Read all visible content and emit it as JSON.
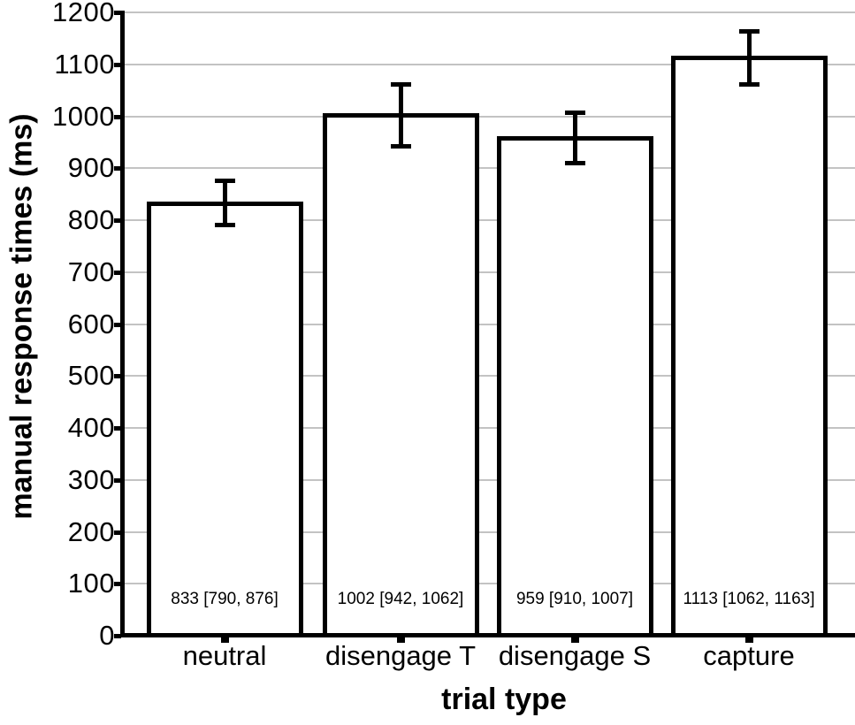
{
  "chart_data": {
    "type": "bar",
    "title": "",
    "xlabel": "trial type",
    "ylabel": "manual response times (ms)",
    "categories": [
      "neutral",
      "disengage T",
      "disengage S",
      "capture"
    ],
    "values": [
      833,
      1002,
      959,
      1113
    ],
    "error_bars": {
      "low": [
        790,
        942,
        910,
        1062
      ],
      "high": [
        876,
        1062,
        1007,
        1163
      ]
    },
    "bar_labels": [
      "833 [790, 876]",
      "1002 [942, 1062]",
      "959 [910, 1007]",
      "1113 [1062, 1163]"
    ],
    "ylim": [
      0,
      1200
    ],
    "yticks": [
      0,
      100,
      200,
      300,
      400,
      500,
      600,
      700,
      800,
      900,
      1000,
      1100,
      1200
    ],
    "grid": "horizontal",
    "legend_position": "none",
    "colors": {
      "bar_fill": "#ffffff",
      "bar_border": "#000000",
      "error_bar": "#000000",
      "gridline": "#c3c3c3",
      "axis": "#000000",
      "text": "#000000",
      "background": "#ffffff"
    }
  }
}
